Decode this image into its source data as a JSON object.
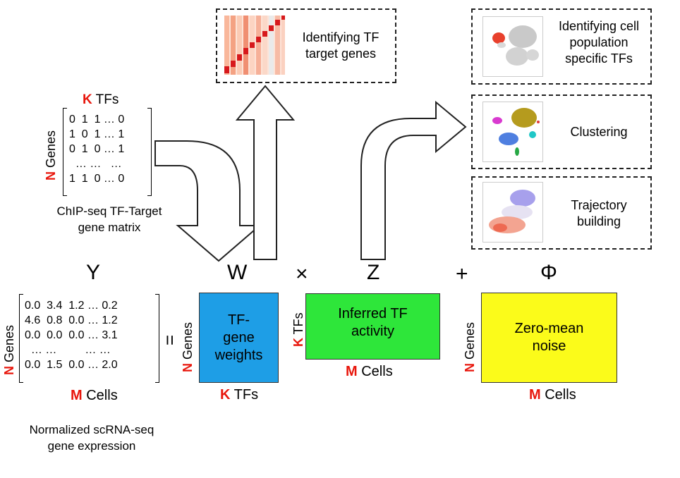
{
  "chipseq": {
    "k_letter": "K",
    "k_suffix": "TFs",
    "n_letter": "N",
    "n_suffix": "Genes",
    "rows": [
      "0  1  1 … 0",
      "1  0  1 … 1",
      "0  1  0 … 1",
      "  … …   …",
      "1  1  0 … 0"
    ],
    "caption_line1": "ChIP-seq TF-Target",
    "caption_line2": "gene matrix"
  },
  "panels": {
    "target_line1": "Identifying TF",
    "target_line2": "target genes",
    "pop_line1": "Identifying cell",
    "pop_line2": "population",
    "pop_line3": "specific TFs",
    "clustering": "Clustering",
    "traj_line1": "Trajectory",
    "traj_line2": "building"
  },
  "equation": {
    "y": "Y",
    "w": "W",
    "times": "×",
    "z": "Z",
    "plus": "+",
    "phi": "Φ",
    "equals": "="
  },
  "y_matrix": {
    "rows": [
      "0.0  3.4  1.2 … 0.2",
      "4.6  0.8  0.0 … 1.2",
      "0.0  0.0  0.0 … 3.1",
      "  … …         … …",
      "0.0  1.5  0.0 … 2.0"
    ],
    "n_letter": "N",
    "n_suffix": "Genes",
    "m_letter": "M",
    "m_suffix": "Cells",
    "caption_line1": "Normalized scRNA-seq",
    "caption_line2": "gene expression"
  },
  "w_box": {
    "line1": "TF-",
    "line2": "gene",
    "line3": "weights",
    "n_letter": "N",
    "n_suffix": "Genes",
    "k_letter": "K",
    "k_suffix": "TFs",
    "color": "#1e9ee6"
  },
  "z_box": {
    "line1": "Inferred TF",
    "line2": "activity",
    "k_letter": "K",
    "k_suffix": "TFs",
    "m_letter": "M",
    "m_suffix": "Cells",
    "color": "#2ee63a"
  },
  "phi_box": {
    "line1": "Zero-mean",
    "line2": "noise",
    "n_letter": "N",
    "n_suffix": "Genes",
    "m_letter": "M",
    "m_suffix": "Cells",
    "color": "#fbfb1a"
  }
}
